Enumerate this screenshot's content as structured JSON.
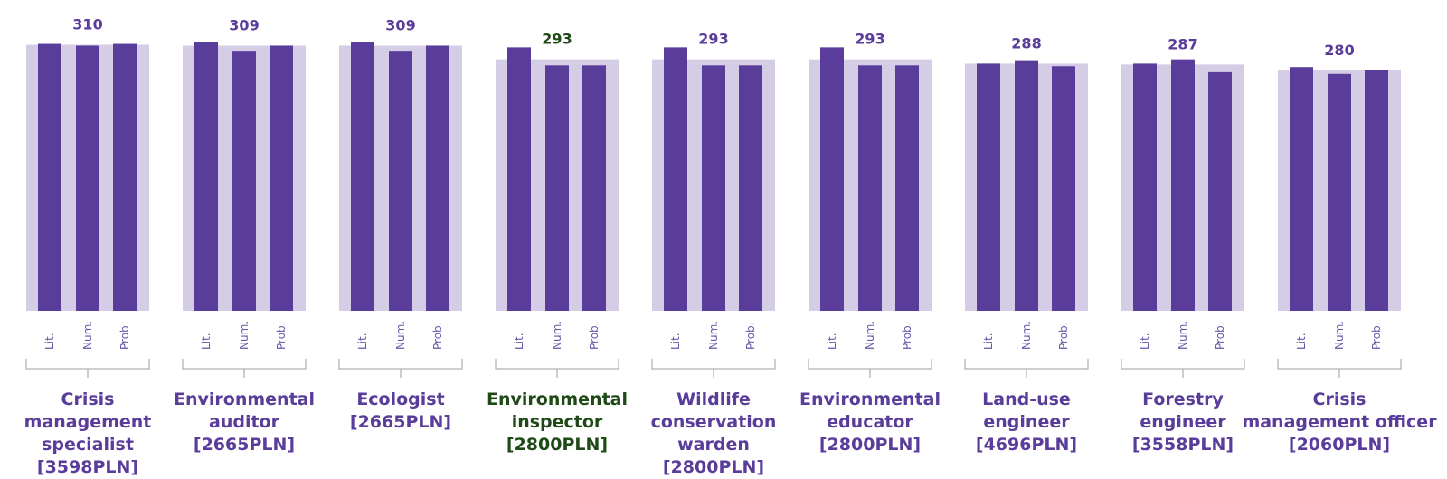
{
  "chart_data": {
    "type": "bar",
    "title": "",
    "subcategories": [
      "Lit.",
      "Num.",
      "Prob."
    ],
    "highlight_color": "#1f4a17",
    "accent_color": "#5a3d9a",
    "background_bar_color": "#d5cde6",
    "ylim": [
      0,
      320
    ],
    "groups": [
      {
        "name_lines": [
          "Crisis",
          "management",
          "specialist",
          "[3598PLN]"
        ],
        "total": 310,
        "values": [
          311,
          309,
          311
        ],
        "highlight": false
      },
      {
        "name_lines": [
          "Environmental",
          "auditor",
          "[2665PLN]"
        ],
        "total": 309,
        "values": [
          313,
          303,
          309
        ],
        "highlight": false
      },
      {
        "name_lines": [
          "Ecologist",
          "[2665PLN]"
        ],
        "total": 309,
        "values": [
          313,
          303,
          309
        ],
        "highlight": false
      },
      {
        "name_lines": [
          "Environmental",
          "inspector",
          "[2800PLN]"
        ],
        "total": 293,
        "values": [
          307,
          286,
          286
        ],
        "highlight": true
      },
      {
        "name_lines": [
          "Wildlife",
          "conservation",
          "warden",
          "[2800PLN]"
        ],
        "total": 293,
        "values": [
          307,
          286,
          286
        ],
        "highlight": false
      },
      {
        "name_lines": [
          "Environmental",
          "educator",
          "[2800PLN]"
        ],
        "total": 293,
        "values": [
          307,
          286,
          286
        ],
        "highlight": false
      },
      {
        "name_lines": [
          "Land-use",
          "engineer",
          "[4696PLN]"
        ],
        "total": 288,
        "values": [
          288,
          292,
          285
        ],
        "highlight": false
      },
      {
        "name_lines": [
          "Forestry",
          "engineer",
          "[3558PLN]"
        ],
        "total": 287,
        "values": [
          288,
          293,
          278
        ],
        "highlight": false
      },
      {
        "name_lines": [
          "Crisis",
          "management officer",
          "[2060PLN]"
        ],
        "total": 280,
        "values": [
          284,
          276,
          281
        ],
        "highlight": false
      }
    ]
  }
}
